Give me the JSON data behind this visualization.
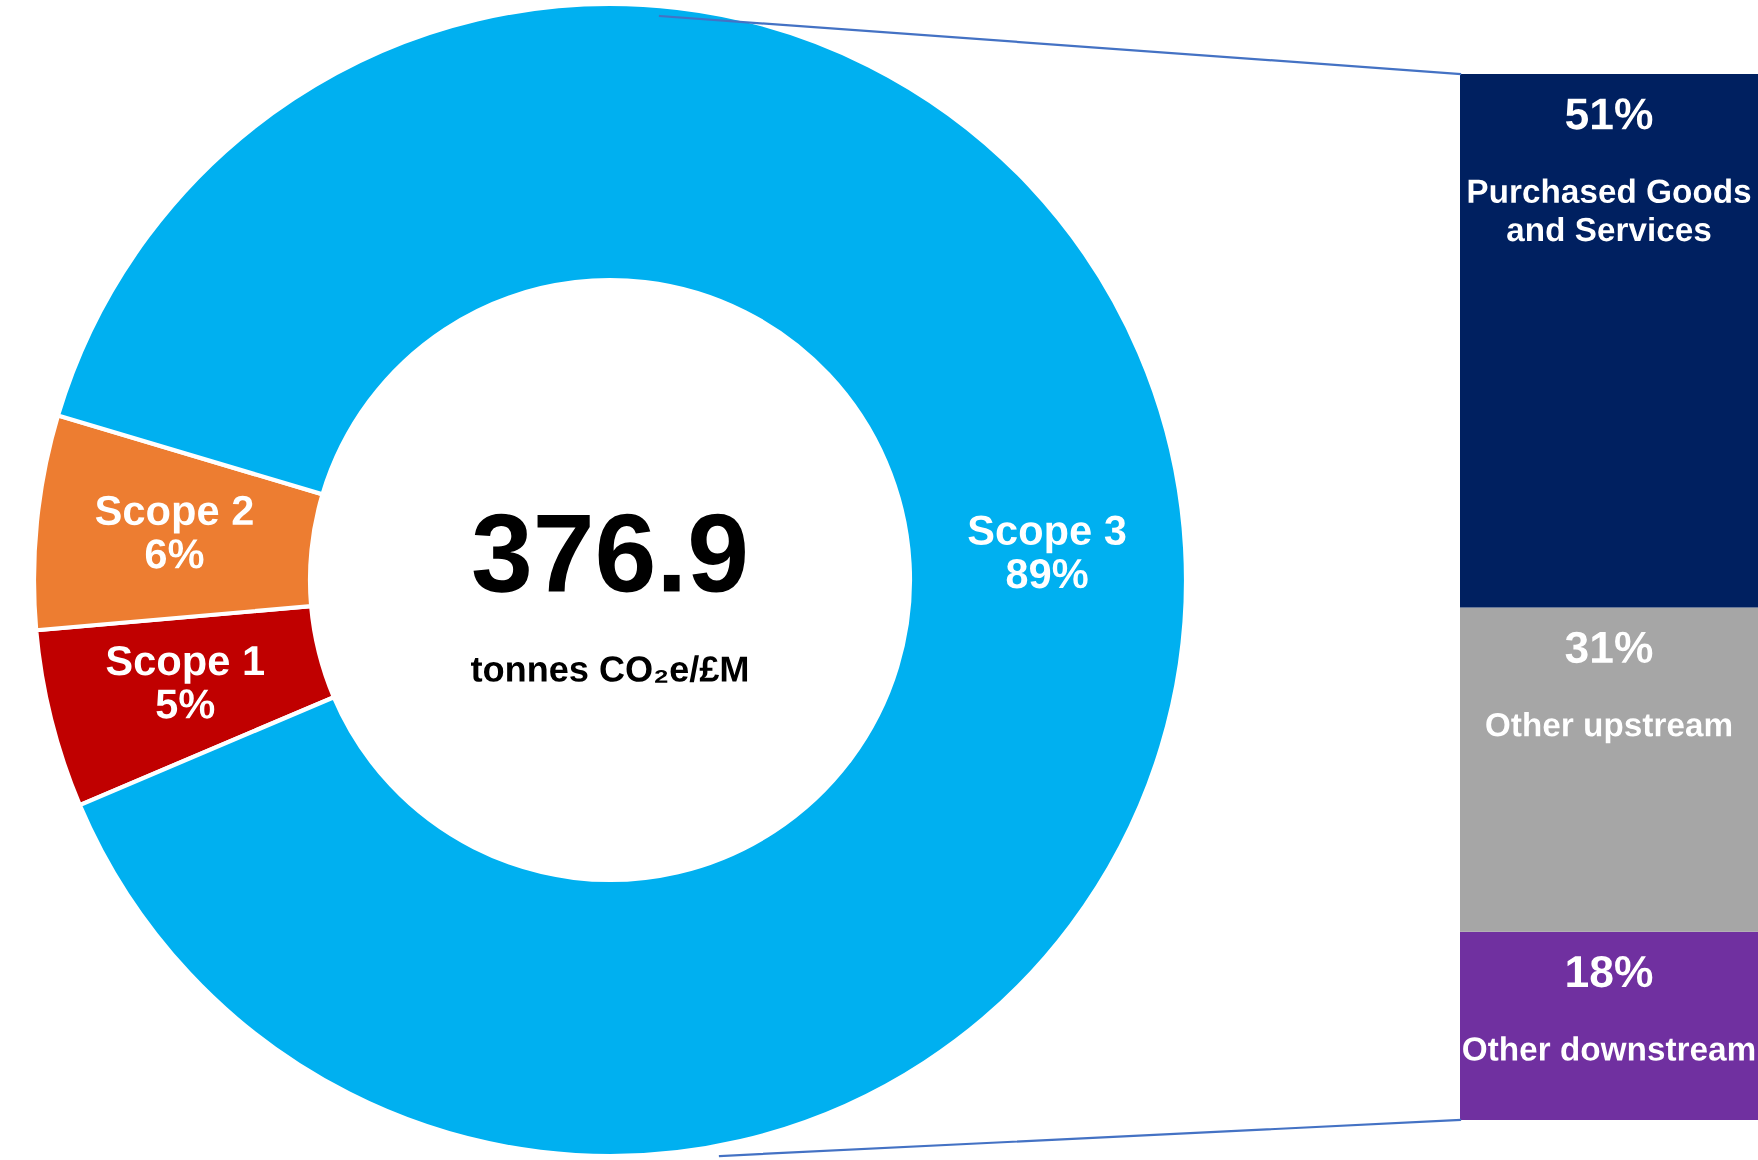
{
  "chart_data": [
    {
      "type": "donut",
      "categories": [
        "Scope 1",
        "Scope 2",
        "Scope 3"
      ],
      "values": [
        5,
        6,
        89
      ],
      "value_labels": [
        "5%",
        "6%",
        "89%"
      ],
      "colors": [
        "#c00000",
        "#ed7d31",
        "#00b0f0"
      ],
      "annotations": [
        "376.9",
        "tonnes CO₂e/£M"
      ],
      "legend": false
    },
    {
      "type": "bar",
      "stacked": true,
      "categories": [
        null
      ],
      "legend": false,
      "tick_labels": false,
      "series": [
        {
          "name": "Other downstream",
          "color": "#7030a0",
          "values": [
            18
          ],
          "value_labels": [
            "18%"
          ]
        },
        {
          "name": "Other upstream",
          "color": "#a6a6a6",
          "values": [
            31
          ],
          "value_labels": [
            "31%"
          ]
        },
        {
          "name": "Purchased Goods and Services",
          "color": "#002060",
          "values": [
            51
          ],
          "value_labels": [
            "51%"
          ]
        }
      ]
    }
  ]
}
